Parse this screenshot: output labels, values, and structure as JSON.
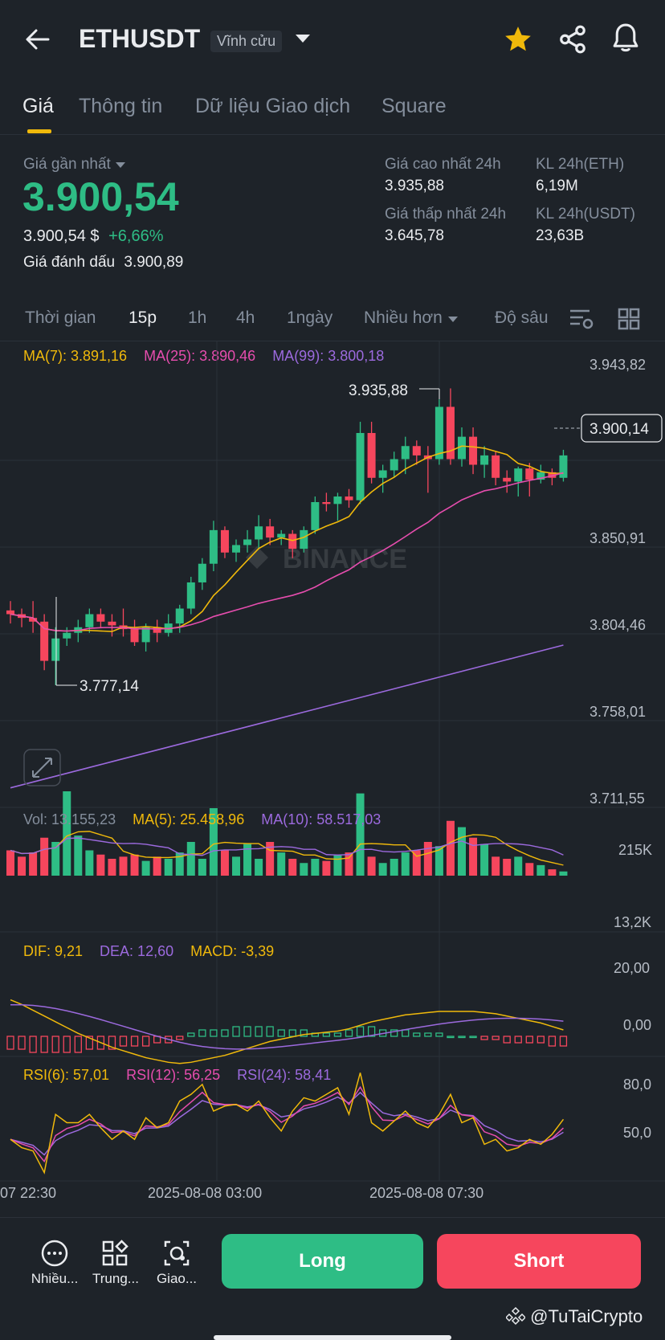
{
  "header": {
    "symbol": "ETHUSDT",
    "contract_type": "Vĩnh cửu"
  },
  "tabs": [
    {
      "label": "Giá"
    },
    {
      "label": "Thông tin"
    },
    {
      "label": "Dữ liệu Giao dịch"
    },
    {
      "label": "Square"
    }
  ],
  "price": {
    "last_label": "Giá gần nhất",
    "last": "3.900,54",
    "usd": "3.900,54 $",
    "change": "+6,66%",
    "mark_label": "Giá đánh dấu",
    "mark": "3.900,89"
  },
  "stats": {
    "high_label": "Giá cao nhất 24h",
    "high": "3.935,88",
    "low_label": "Giá thấp nhất 24h",
    "low": "3.645,78",
    "vol_eth_label": "KL 24h(ETH)",
    "vol_eth": "6,19M",
    "vol_usdt_label": "KL 24h(USDT)",
    "vol_usdt": "23,63B"
  },
  "timeframes": {
    "time": "Thời gian",
    "m15": "15p",
    "h1": "1h",
    "h4": "4h",
    "d1": "1ngày",
    "more": "Nhiều hơn",
    "depth": "Độ sâu"
  },
  "ma": {
    "ma7": "MA(7): 3.891,16",
    "ma25": "MA(25): 3.890,46",
    "ma99": "MA(99): 3.800,18"
  },
  "price_axis": [
    "3.943,82",
    "3.850,91",
    "3.804,46",
    "3.758,01",
    "3.711,55"
  ],
  "current_price_tag": "3.900,14",
  "annotations": {
    "high": "3.935,88",
    "low": "3.777,14"
  },
  "watermark": "BINANCE",
  "volume": {
    "vol": "Vol: 13.155,23",
    "ma5": "MA(5): 25.458,96",
    "ma10": "MA(10): 58.517,03",
    "axis_top": "215K",
    "axis_bottom": "13,2K"
  },
  "macd": {
    "dif": "DIF: 9,21",
    "dea": "DEA: 12,60",
    "macd": "MACD: -3,39",
    "axis_top": "20,00",
    "axis_mid": "0,00"
  },
  "rsi": {
    "rsi6": "RSI(6): 57,01",
    "rsi12": "RSI(12): 56,25",
    "rsi24": "RSI(24): 58,41",
    "axis_top": "80,0",
    "axis_mid": "50,0"
  },
  "time_axis": [
    "07 22:30",
    "2025-08-08 03:00",
    "2025-08-08 07:30"
  ],
  "bottom": {
    "more": "Nhiều...",
    "center": "Trung...",
    "trade": "Giao...",
    "long": "Long",
    "short": "Short",
    "credit": "@TuTaiCrypto"
  },
  "colors": {
    "up": "#2ebd85",
    "down": "#f6465d",
    "ma7": "#f0b90b",
    "ma25": "#e64dae",
    "ma99": "#9c6ade",
    "accent": "#f0b90b"
  },
  "chart_data": {
    "type": "candlestick",
    "timeframe": "15p",
    "price_range": [
      3711.55,
      3943.82
    ],
    "candles": [
      [
        3817,
        3822,
        3810,
        3815
      ],
      [
        3815,
        3818,
        3808,
        3813
      ],
      [
        3813,
        3822,
        3805,
        3811
      ],
      [
        3811,
        3815,
        3785,
        3790
      ],
      [
        3790,
        3808,
        3777,
        3802
      ],
      [
        3802,
        3808,
        3798,
        3805
      ],
      [
        3805,
        3812,
        3800,
        3808
      ],
      [
        3808,
        3818,
        3805,
        3815
      ],
      [
        3815,
        3818,
        3808,
        3811
      ],
      [
        3811,
        3815,
        3803,
        3809
      ],
      [
        3809,
        3818,
        3803,
        3807
      ],
      [
        3807,
        3812,
        3798,
        3800
      ],
      [
        3800,
        3810,
        3795,
        3808
      ],
      [
        3808,
        3812,
        3800,
        3805
      ],
      [
        3805,
        3815,
        3803,
        3810
      ],
      [
        3810,
        3820,
        3805,
        3818
      ],
      [
        3818,
        3835,
        3815,
        3832
      ],
      [
        3832,
        3845,
        3828,
        3842
      ],
      [
        3842,
        3865,
        3838,
        3860
      ],
      [
        3860,
        3862,
        3845,
        3848
      ],
      [
        3848,
        3855,
        3843,
        3852
      ],
      [
        3852,
        3860,
        3848,
        3855
      ],
      [
        3855,
        3868,
        3850,
        3862
      ],
      [
        3862,
        3866,
        3852,
        3856
      ],
      [
        3856,
        3860,
        3852,
        3858
      ],
      [
        3858,
        3860,
        3845,
        3850
      ],
      [
        3850,
        3862,
        3848,
        3860
      ],
      [
        3860,
        3878,
        3858,
        3875
      ],
      [
        3875,
        3880,
        3870,
        3874
      ],
      [
        3874,
        3880,
        3865,
        3878
      ],
      [
        3878,
        3882,
        3872,
        3876
      ],
      [
        3876,
        3918,
        3874,
        3912
      ],
      [
        3912,
        3918,
        3885,
        3888
      ],
      [
        3888,
        3895,
        3880,
        3892
      ],
      [
        3892,
        3902,
        3888,
        3898
      ],
      [
        3898,
        3910,
        3890,
        3905
      ],
      [
        3905,
        3908,
        3895,
        3900
      ],
      [
        3900,
        3905,
        3880,
        3898
      ],
      [
        3898,
        3930,
        3895,
        3926
      ],
      [
        3926,
        3935.88,
        3895,
        3898
      ],
      [
        3898,
        3915,
        3894,
        3910
      ],
      [
        3910,
        3915,
        3890,
        3895
      ],
      [
        3895,
        3905,
        3888,
        3900
      ],
      [
        3900,
        3902,
        3884,
        3888
      ],
      [
        3888,
        3892,
        3880,
        3886
      ],
      [
        3886,
        3894,
        3878,
        3893
      ],
      [
        3893,
        3896,
        3878,
        3887
      ],
      [
        3887,
        3895,
        3885,
        3891
      ],
      [
        3891,
        3893,
        3884,
        3888
      ],
      [
        3888,
        3903,
        3886,
        3900
      ]
    ],
    "volume": [
      60,
      45,
      55,
      90,
      80,
      200,
      95,
      60,
      50,
      40,
      45,
      50,
      35,
      45,
      40,
      55,
      80,
      40,
      160,
      60,
      45,
      75,
      40,
      80,
      55,
      40,
      30,
      40,
      35,
      50,
      55,
      195,
      45,
      30,
      40,
      55,
      60,
      80,
      70,
      130,
      115,
      90,
      75,
      45,
      40,
      45,
      30,
      25,
      15,
      10
    ],
    "macd_hist": [
      -4,
      -4,
      -5,
      -5,
      -5,
      -5,
      -5,
      -4,
      -4,
      -4,
      -3,
      -3,
      -3,
      -2,
      -2,
      -1,
      1,
      2,
      2,
      2,
      3,
      3,
      3,
      3,
      2,
      2,
      2,
      1,
      1,
      1,
      2,
      3,
      3,
      2,
      2,
      2,
      1,
      1,
      1,
      0,
      0,
      0,
      -1,
      -1,
      -2,
      -2,
      -2,
      -2,
      -3,
      -3
    ],
    "rsi6": [
      45,
      40,
      38,
      25,
      60,
      55,
      55,
      60,
      52,
      45,
      50,
      45,
      58,
      52,
      55,
      68,
      72,
      78,
      62,
      65,
      66,
      62,
      68,
      58,
      50,
      62,
      70,
      68,
      72,
      76,
      60,
      85,
      55,
      50,
      56,
      62,
      55,
      52,
      60,
      72,
      55,
      58,
      42,
      45,
      38,
      40,
      45,
      42,
      48,
      57
    ]
  }
}
